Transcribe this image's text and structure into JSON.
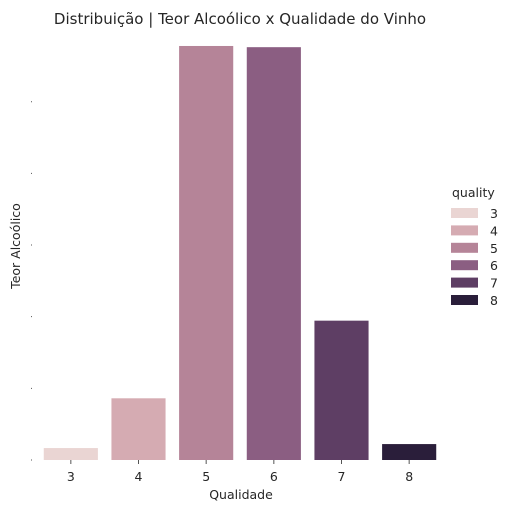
{
  "chart_data": {
    "type": "bar",
    "title": "Distribuição | Teor Alcoólico x Qualidade do Vinho",
    "xlabel": "Qualidade",
    "ylabel": "Teor Alcoólico",
    "categories": [
      "3",
      "4",
      "5",
      "6",
      "7",
      "8"
    ],
    "values": [
      0.3,
      1.55,
      10.4,
      10.37,
      3.5,
      0.4
    ],
    "ylim": [
      0,
      10.5
    ],
    "y_tick_values": [
      0,
      1.8,
      3.6,
      5.4,
      7.2,
      9.0
    ],
    "y_tick_labels_visible": false,
    "colors": [
      "#ead5d3",
      "#d5abb2",
      "#b58498",
      "#8b5e82",
      "#5e3e64",
      "#2a1e3a"
    ],
    "grid": false,
    "legend": {
      "title": "quality",
      "placement": "right",
      "entries": [
        "3",
        "4",
        "5",
        "6",
        "7",
        "8"
      ]
    }
  }
}
